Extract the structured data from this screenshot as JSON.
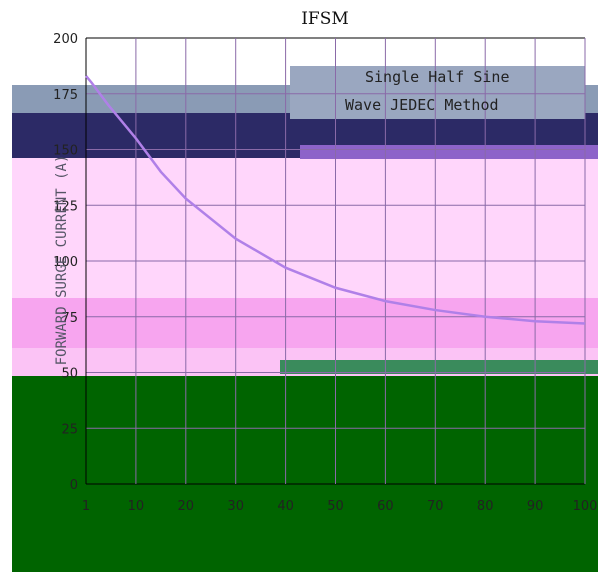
{
  "chart_data": {
    "type": "line",
    "title": "IFSM",
    "ylabel": "FORWARD SURGE CURRENT (A)",
    "xlabel": "",
    "annotation": [
      "Single Half Sine",
      "Wave JEDEC Method"
    ],
    "y_ticks": [
      "200",
      "175",
      "150",
      "125",
      "100",
      "75",
      "50",
      "25",
      "0"
    ],
    "x_ticks": [
      "1",
      "10",
      "20",
      "30",
      "40",
      "50",
      "60",
      "70",
      "80",
      "90",
      "100"
    ],
    "ylim": [
      0,
      200
    ],
    "xlim": [
      1,
      100
    ],
    "grid": true,
    "series": [
      {
        "x": [
          1,
          2,
          5,
          10,
          15,
          20,
          30,
          40,
          50,
          60,
          70,
          80,
          90,
          100
        ],
        "y": [
          183,
          180,
          170,
          155,
          140,
          128,
          110,
          97,
          88,
          82,
          78,
          75,
          73,
          72
        ]
      }
    ]
  },
  "colors": {
    "curve": "#b080e8",
    "curve_tail": "#e040a0",
    "band_navy": "#2c2a66",
    "band_grey": "#8a9bb5",
    "band_pink": "#ffd6fb",
    "band_pink_dark": "#f7a5ef",
    "band_green": "#006400",
    "grid": "#8a6aa8",
    "axis": "#000000"
  }
}
